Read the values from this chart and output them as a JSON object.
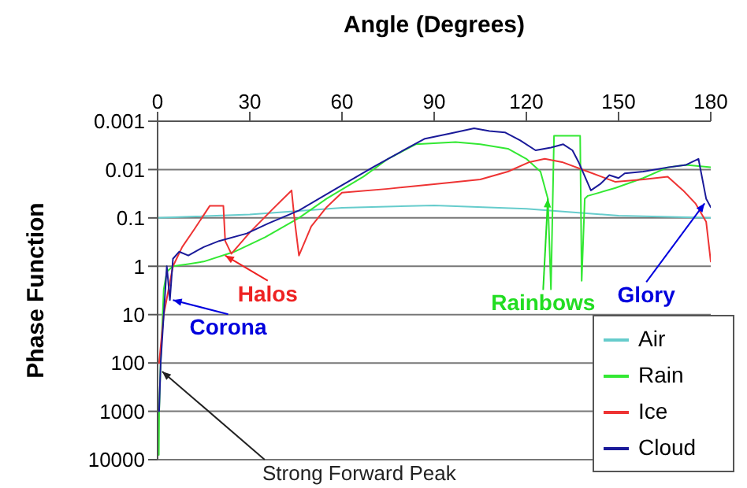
{
  "chart_data": {
    "type": "line",
    "xlabel": "Angle (Degrees)",
    "ylabel": "Phase Function",
    "xlim": [
      0,
      180
    ],
    "xticks": [
      0,
      30,
      60,
      90,
      120,
      150,
      180
    ],
    "ylim": [
      10000,
      0.001
    ],
    "yticks": [
      0.001,
      0.01,
      0.1,
      1,
      10,
      100,
      1000,
      10000
    ],
    "log": "y",
    "grid": "y",
    "legend": "bottom right",
    "marker": "none",
    "line_style": "solid",
    "series": [
      {
        "name": "Air",
        "color": "#66cccc",
        "x": [
          0,
          30,
          60,
          90,
          120,
          150,
          180
        ],
        "values": [
          0.1,
          0.085,
          0.062,
          0.055,
          0.065,
          0.09,
          0.1
        ]
      },
      {
        "name": "Rain",
        "color": "#33e833",
        "x": [
          0.4,
          0.5,
          1,
          2,
          3,
          5,
          10,
          15,
          25,
          35,
          46,
          55,
          67,
          75,
          84,
          97,
          105,
          114,
          120,
          124.6,
          127,
          128,
          129,
          130,
          133,
          137.5,
          138,
          139,
          140,
          149,
          158,
          166,
          172,
          180
        ],
        "values": [
          8000,
          1000,
          100,
          3,
          1.3,
          1,
          0.9,
          0.8,
          0.5,
          0.25,
          0.1,
          0.04,
          0.014,
          0.006,
          0.003,
          0.0027,
          0.003,
          0.0037,
          0.006,
          0.011,
          0.04,
          3,
          0.002,
          0.002,
          0.002,
          0.002,
          2,
          0.04,
          0.035,
          0.024,
          0.015,
          0.009,
          0.008,
          0.009
        ]
      },
      {
        "name": "Ice",
        "color": "#ee3333",
        "x": [
          0.5,
          2,
          5,
          8,
          12,
          17,
          21.4,
          22,
          24,
          30,
          37,
          43.6,
          44.5,
          46,
          50,
          55,
          60,
          75,
          90,
          105,
          114,
          121,
          126,
          131.6,
          140,
          149,
          158,
          166,
          171,
          175,
          178.5,
          180
        ],
        "values": [
          100,
          10,
          1,
          0.4,
          0.17,
          0.056,
          0.056,
          0.3,
          0.55,
          0.2,
          0.07,
          0.027,
          0.1,
          0.6,
          0.15,
          0.06,
          0.03,
          0.025,
          0.02,
          0.016,
          0.011,
          0.007,
          0.006,
          0.007,
          0.011,
          0.018,
          0.016,
          0.014,
          0.027,
          0.05,
          0.12,
          0.8
        ]
      },
      {
        "name": "Cloud",
        "color": "#1a1a99",
        "x": [
          0.5,
          1,
          2,
          3,
          4,
          5,
          7,
          10,
          15,
          20,
          29,
          36,
          46,
          58,
          70,
          80,
          87,
          95,
          103,
          108,
          113,
          118,
          123,
          128,
          132,
          135,
          137,
          141,
          144,
          147,
          150,
          152,
          158,
          166,
          172,
          176,
          178.5,
          180
        ],
        "values": [
          1000,
          100,
          10,
          1,
          5,
          0.7,
          0.5,
          0.6,
          0.4,
          0.3,
          0.21,
          0.13,
          0.07,
          0.025,
          0.009,
          0.004,
          0.0023,
          0.0018,
          0.0014,
          0.0016,
          0.0017,
          0.0025,
          0.004,
          0.0035,
          0.003,
          0.004,
          0.007,
          0.027,
          0.02,
          0.013,
          0.015,
          0.012,
          0.011,
          0.009,
          0.008,
          0.006,
          0.04,
          0.06
        ]
      }
    ],
    "annotations": [
      {
        "text": "Strong Forward Peak",
        "x": 1.5,
        "y": 150
      },
      {
        "text": "Corona",
        "x": 5,
        "y": 5
      },
      {
        "text": "Halos",
        "x": 22,
        "y": 0.6
      },
      {
        "text": "Rainbows",
        "x": 127,
        "y": 0.04
      },
      {
        "text": "Glory",
        "x": 178,
        "y": 0.05
      }
    ]
  }
}
